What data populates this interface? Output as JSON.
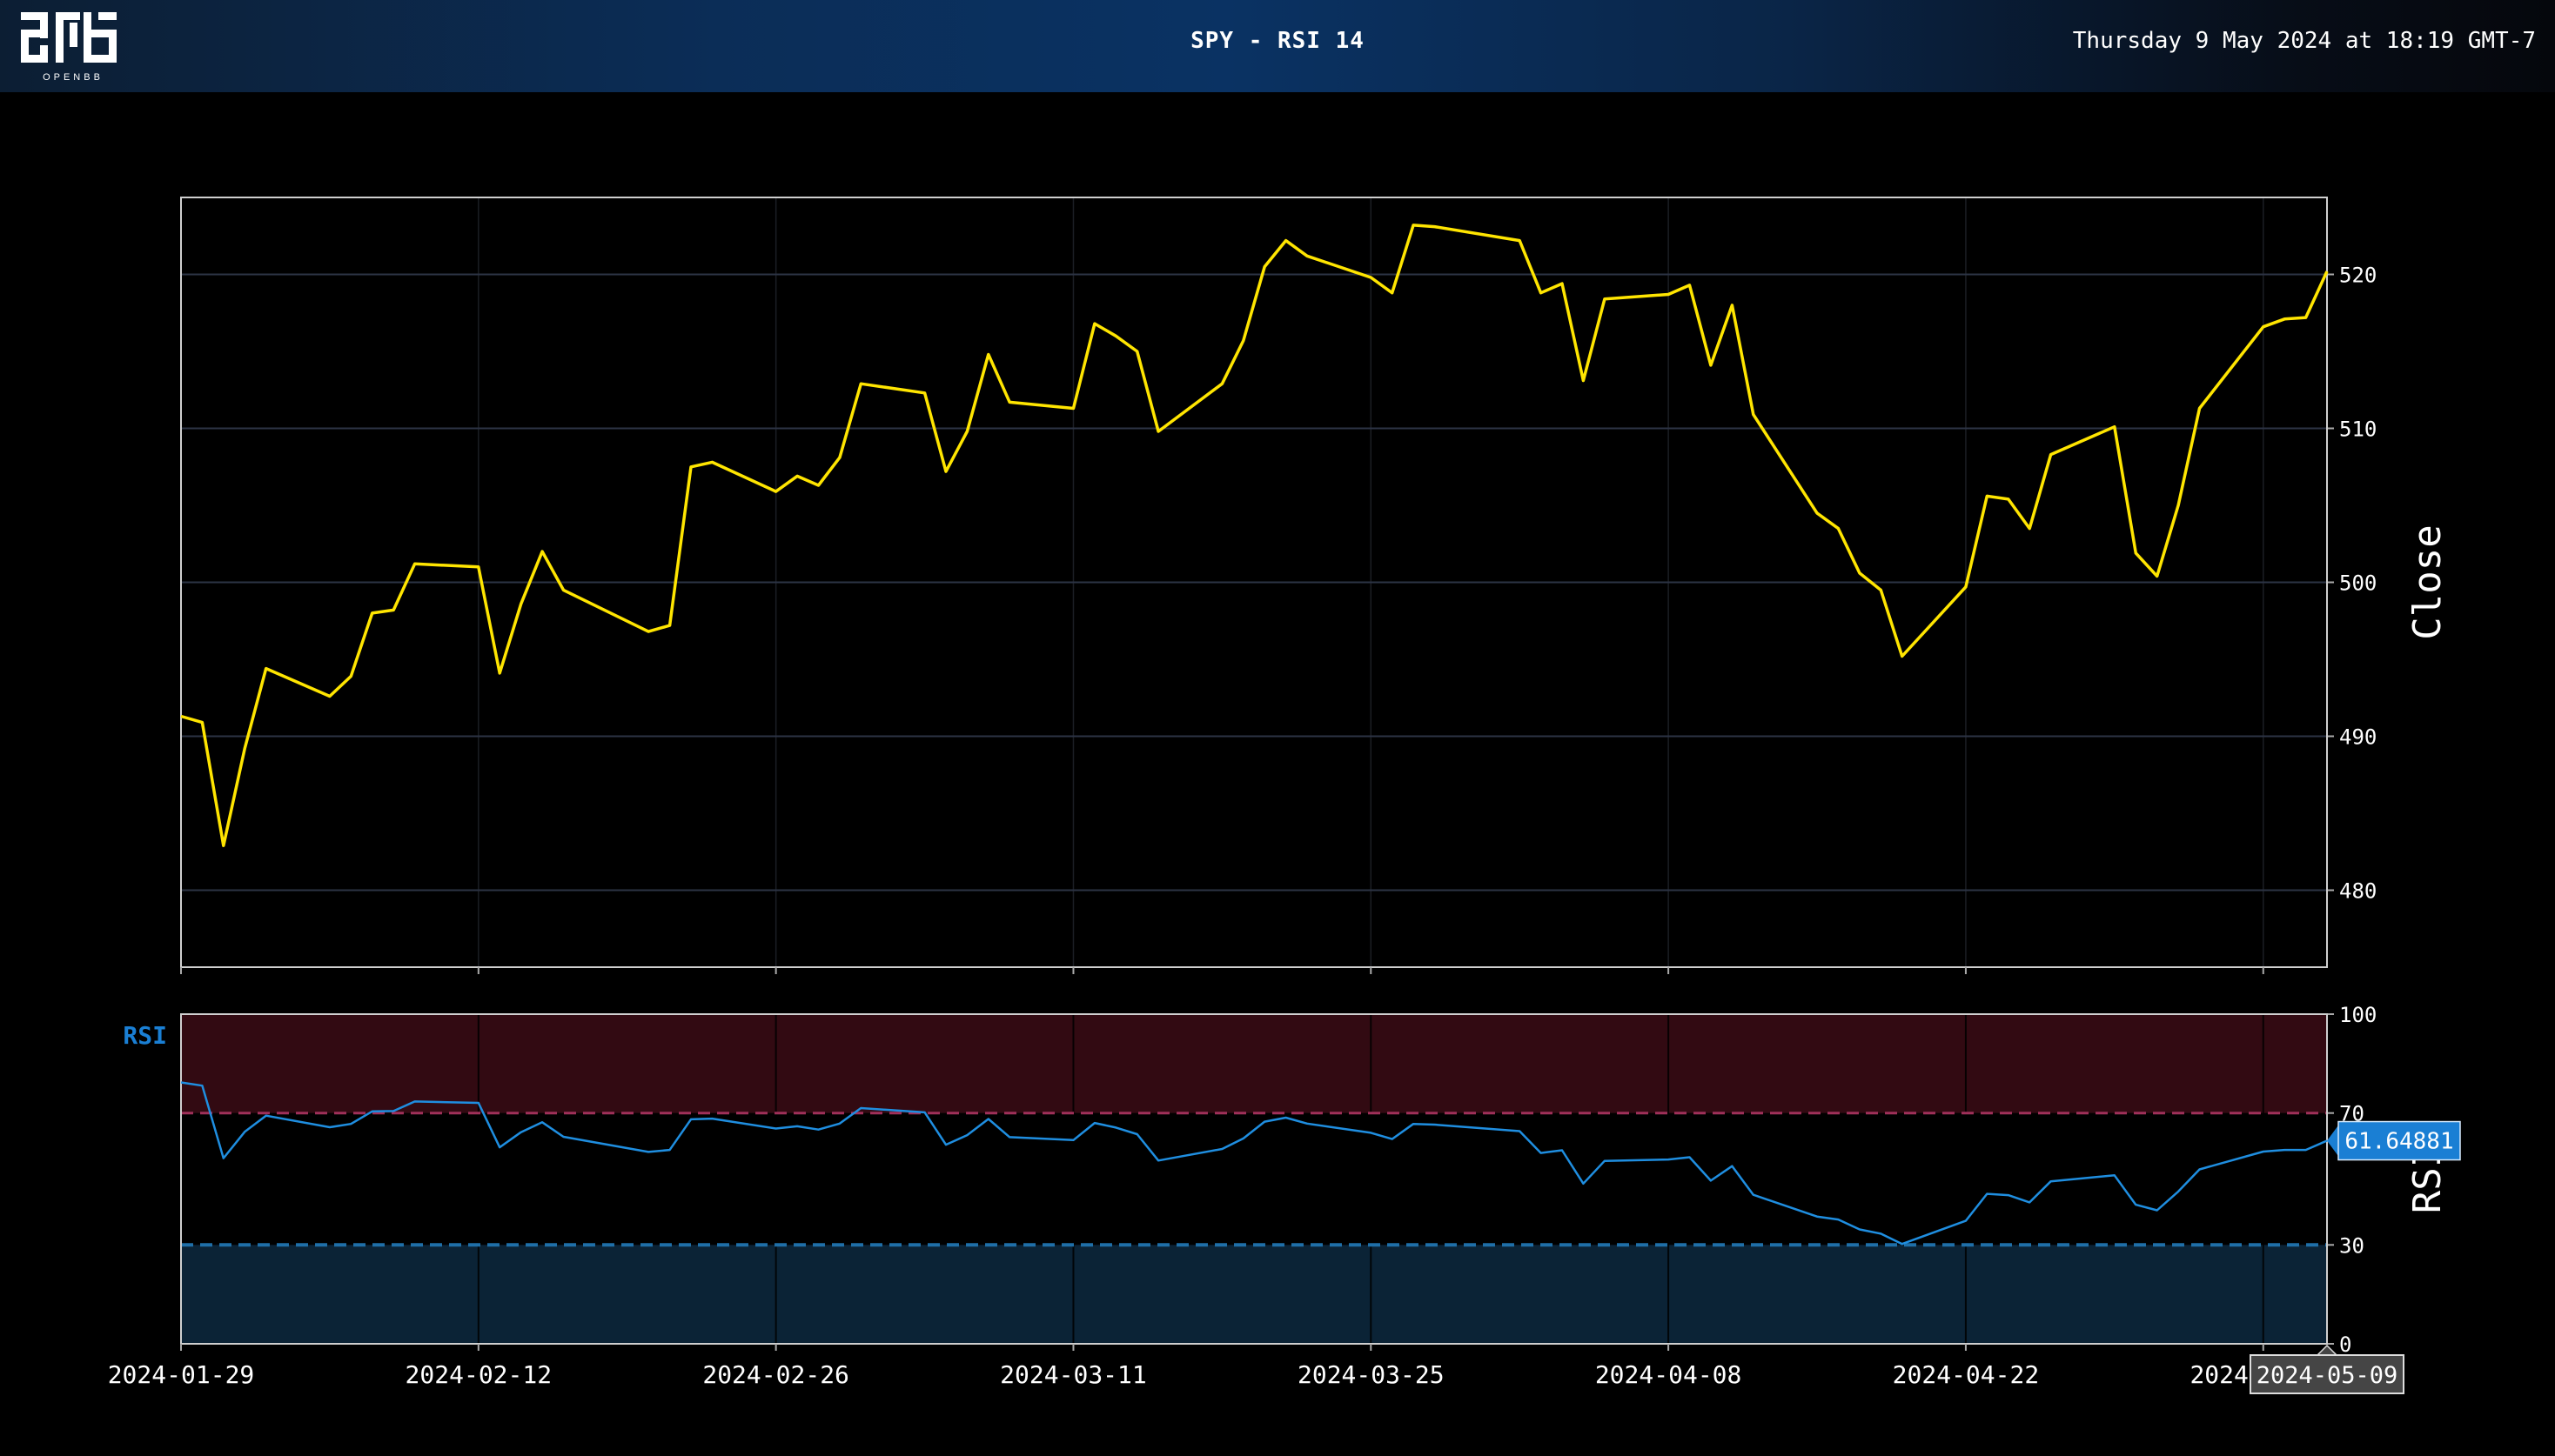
{
  "header": {
    "title": "SPY - RSI 14",
    "datetime": "Thursday 9 May 2024 at 18:19 GMT-7",
    "logo_text": "OPENBB"
  },
  "colors": {
    "close_line": "#ffe500",
    "rsi_line": "#1f8ee0",
    "overbought_band": "#320a12",
    "oversold_band": "#0b2336",
    "overbought_line": "#a0305a",
    "oversold_line": "#1f6fa8",
    "badge_rsi": "#1a7fd4"
  },
  "chart_data": [
    {
      "type": "line",
      "ylabel": "Close",
      "ylim": [
        475,
        525
      ],
      "yticks": [
        480,
        490,
        500,
        510,
        520
      ],
      "x": [
        "2024-01-29",
        "2024-01-30",
        "2024-01-31",
        "2024-02-01",
        "2024-02-02",
        "2024-02-05",
        "2024-02-06",
        "2024-02-07",
        "2024-02-08",
        "2024-02-09",
        "2024-02-12",
        "2024-02-13",
        "2024-02-14",
        "2024-02-15",
        "2024-02-16",
        "2024-02-20",
        "2024-02-21",
        "2024-02-22",
        "2024-02-23",
        "2024-02-26",
        "2024-02-27",
        "2024-02-28",
        "2024-02-29",
        "2024-03-01",
        "2024-03-04",
        "2024-03-05",
        "2024-03-06",
        "2024-03-07",
        "2024-03-08",
        "2024-03-11",
        "2024-03-12",
        "2024-03-13",
        "2024-03-14",
        "2024-03-15",
        "2024-03-18",
        "2024-03-19",
        "2024-03-20",
        "2024-03-21",
        "2024-03-22",
        "2024-03-25",
        "2024-03-26",
        "2024-03-27",
        "2024-03-28",
        "2024-04-01",
        "2024-04-02",
        "2024-04-03",
        "2024-04-04",
        "2024-04-05",
        "2024-04-08",
        "2024-04-09",
        "2024-04-10",
        "2024-04-11",
        "2024-04-12",
        "2024-04-15",
        "2024-04-16",
        "2024-04-17",
        "2024-04-18",
        "2024-04-19",
        "2024-04-22",
        "2024-04-23",
        "2024-04-24",
        "2024-04-25",
        "2024-04-26",
        "2024-04-29",
        "2024-04-30",
        "2024-05-01",
        "2024-05-02",
        "2024-05-03",
        "2024-05-06",
        "2024-05-07",
        "2024-05-08",
        "2024-05-09"
      ],
      "series": [
        {
          "values": [
            491.3,
            490.9,
            482.9,
            489.2,
            494.4,
            492.6,
            493.9,
            498.0,
            498.2,
            501.2,
            501.0,
            494.1,
            498.6,
            502.0,
            499.5,
            496.8,
            497.2,
            507.5,
            507.8,
            505.9,
            506.9,
            506.3,
            508.1,
            512.9,
            512.3,
            507.2,
            509.8,
            514.8,
            511.7,
            511.3,
            516.8,
            516.0,
            515.0,
            509.8,
            512.9,
            515.7,
            520.5,
            522.2,
            521.2,
            519.8,
            518.8,
            523.2,
            523.1,
            522.2,
            518.8,
            519.4,
            513.1,
            518.4,
            518.7,
            519.3,
            514.1,
            518.0,
            510.9,
            504.5,
            503.5,
            500.6,
            499.5,
            495.2,
            499.7,
            505.6,
            505.4,
            503.5,
            508.3,
            510.1,
            501.9,
            500.4,
            505.0,
            511.3,
            516.6,
            517.1,
            517.2,
            520.2
          ]
        }
      ]
    },
    {
      "type": "line",
      "label": "RSI",
      "ylabel": "RSI",
      "ylim": [
        0,
        100
      ],
      "yticks": [
        0,
        30,
        70,
        100
      ],
      "overbought": 70,
      "oversold": 30,
      "x": [
        "2024-01-29",
        "2024-01-30",
        "2024-01-31",
        "2024-02-01",
        "2024-02-02",
        "2024-02-05",
        "2024-02-06",
        "2024-02-07",
        "2024-02-08",
        "2024-02-09",
        "2024-02-12",
        "2024-02-13",
        "2024-02-14",
        "2024-02-15",
        "2024-02-16",
        "2024-02-20",
        "2024-02-21",
        "2024-02-22",
        "2024-02-23",
        "2024-02-26",
        "2024-02-27",
        "2024-02-28",
        "2024-02-29",
        "2024-03-01",
        "2024-03-04",
        "2024-03-05",
        "2024-03-06",
        "2024-03-07",
        "2024-03-08",
        "2024-03-11",
        "2024-03-12",
        "2024-03-13",
        "2024-03-14",
        "2024-03-15",
        "2024-03-18",
        "2024-03-19",
        "2024-03-20",
        "2024-03-21",
        "2024-03-22",
        "2024-03-25",
        "2024-03-26",
        "2024-03-27",
        "2024-03-28",
        "2024-04-01",
        "2024-04-02",
        "2024-04-03",
        "2024-04-04",
        "2024-04-05",
        "2024-04-08",
        "2024-04-09",
        "2024-04-10",
        "2024-04-11",
        "2024-04-12",
        "2024-04-15",
        "2024-04-16",
        "2024-04-17",
        "2024-04-18",
        "2024-04-19",
        "2024-04-22",
        "2024-04-23",
        "2024-04-24",
        "2024-04-25",
        "2024-04-26",
        "2024-04-29",
        "2024-04-30",
        "2024-05-01",
        "2024-05-02",
        "2024-05-03",
        "2024-05-06",
        "2024-05-07",
        "2024-05-08",
        "2024-05-09"
      ],
      "series": [
        {
          "values": [
            79.3,
            78.3,
            56.3,
            64.3,
            69.2,
            65.7,
            66.7,
            70.5,
            70.6,
            73.5,
            73.1,
            59.6,
            64.2,
            67.2,
            62.8,
            58.2,
            58.8,
            68.1,
            68.3,
            65.3,
            66.0,
            65.0,
            66.8,
            71.5,
            70.2,
            60.4,
            63.3,
            68.2,
            62.7,
            61.8,
            67.0,
            65.6,
            63.6,
            55.6,
            59.1,
            62.3,
            67.4,
            68.6,
            66.8,
            64.0,
            62.1,
            66.7,
            66.5,
            64.5,
            57.9,
            58.7,
            48.6,
            55.5,
            55.9,
            56.6,
            49.5,
            53.9,
            45.2,
            38.6,
            37.7,
            34.7,
            33.4,
            30.3,
            37.3,
            45.5,
            45.1,
            42.9,
            49.3,
            51.1,
            42.2,
            40.5,
            46.2,
            52.9,
            58.3,
            58.8,
            58.8,
            61.6
          ]
        }
      ],
      "last_value_label": "61.64881"
    }
  ],
  "xaxis": {
    "ticks": [
      "2024-01-29",
      "2024-02-12",
      "2024-02-26",
      "2024-03-11",
      "2024-03-25",
      "2024-04-08",
      "2024-04-22",
      "2024-05-06"
    ],
    "hover_label": "2024-05-09"
  }
}
